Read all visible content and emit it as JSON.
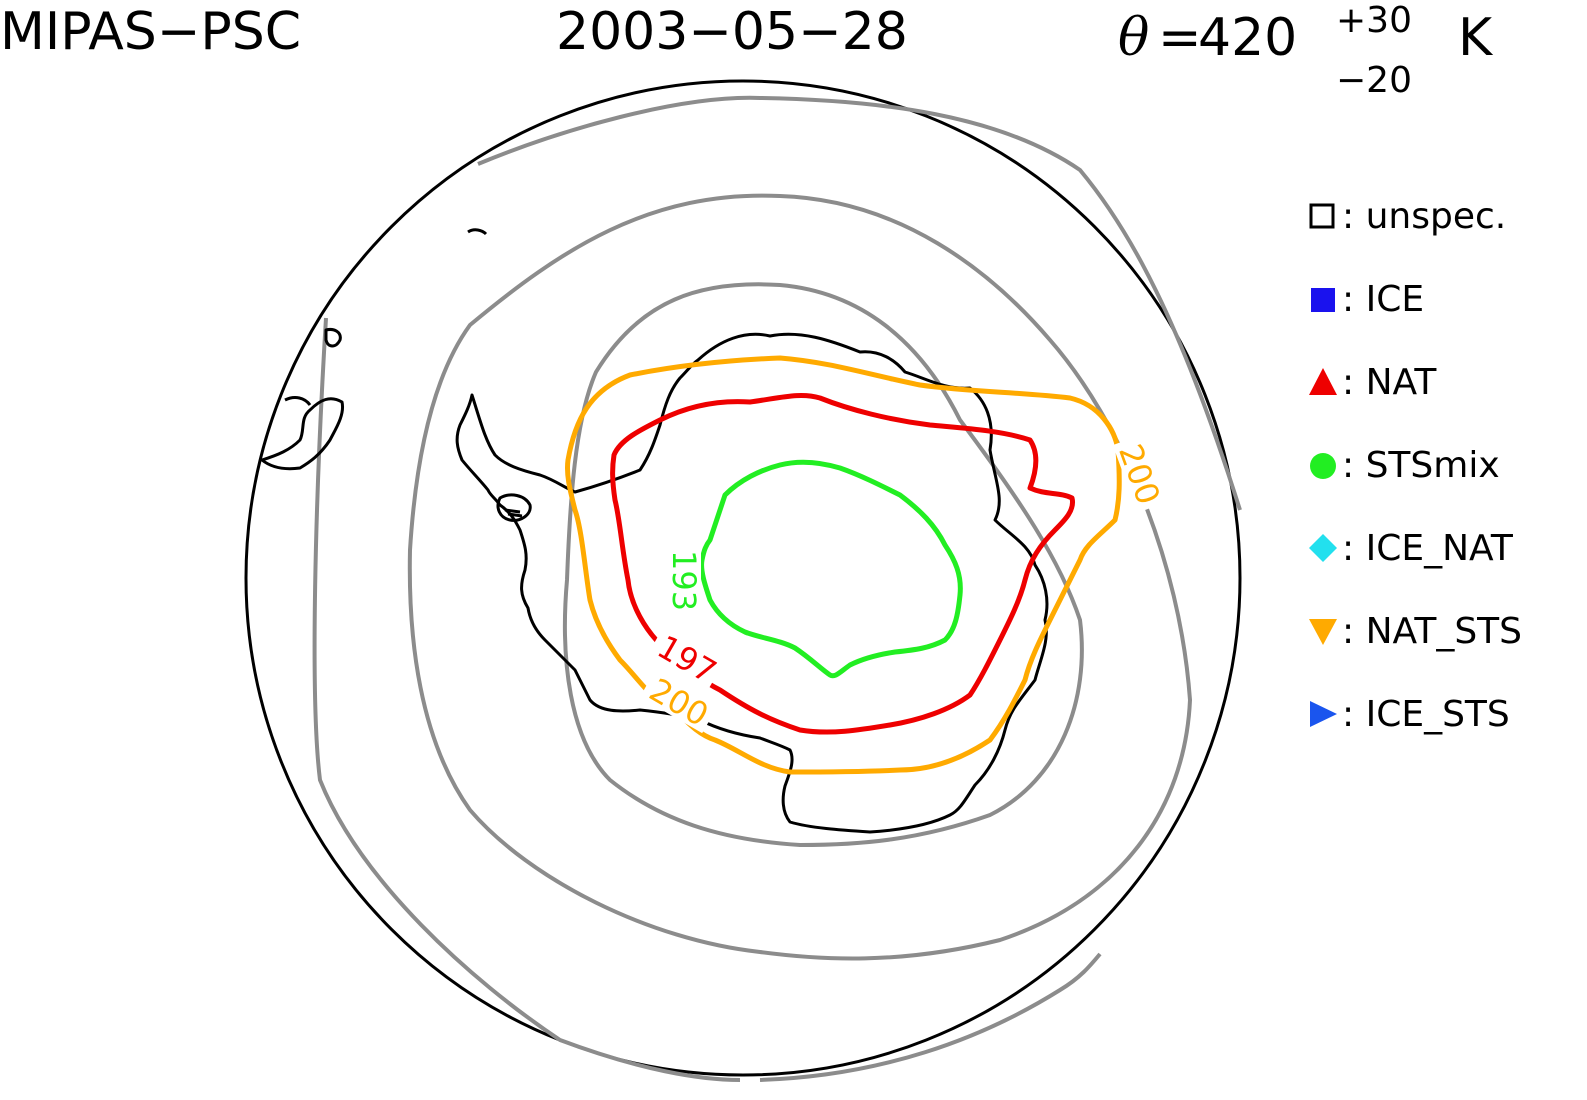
{
  "header": {
    "instrument": "MIPAS−PSC",
    "date": "2003−05−28",
    "theta_symbol": "θ",
    "theta_equals": "=",
    "theta_value": "420",
    "theta_plus": "+30",
    "theta_minus": "−20",
    "theta_unit": "K"
  },
  "contour_labels": {
    "green": "193",
    "red": "197",
    "orange_left": "200",
    "orange_right": "200"
  },
  "contour_colors": {
    "green": "#22ee22",
    "red": "#ee0000",
    "orange": "#ffaa00",
    "gray": "#8c8c8c",
    "coast": "#000000"
  },
  "legend": [
    {
      "label": ": unspec.",
      "shape": "square-open",
      "color": "#000000"
    },
    {
      "label": ": ICE",
      "shape": "square",
      "color": "#1a12ee"
    },
    {
      "label": ": NAT",
      "shape": "triangle-up",
      "color": "#ee0000"
    },
    {
      "label": ": STSmix",
      "shape": "circle",
      "color": "#22ee22"
    },
    {
      "label": ": ICE_NAT",
      "shape": "diamond",
      "color": "#22e0ee"
    },
    {
      "label": ": NAT_STS",
      "shape": "triangle-down",
      "color": "#ffaa00"
    },
    {
      "label": ": ICE_STS",
      "shape": "triangle-right",
      "color": "#1a55ee"
    }
  ]
}
